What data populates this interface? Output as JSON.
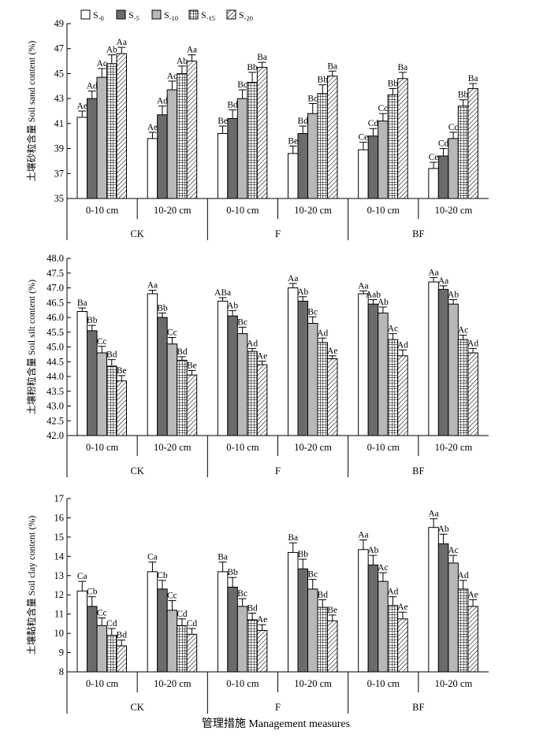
{
  "legend": {
    "entries": [
      {
        "base": "S",
        "sub": "-0",
        "pattern": "white"
      },
      {
        "base": "S",
        "sub": "-5",
        "pattern": "dark"
      },
      {
        "base": "S",
        "sub": "-10",
        "pattern": "light"
      },
      {
        "base": "S",
        "sub": "-15",
        "pattern": "grid"
      },
      {
        "base": "S",
        "sub": "-20",
        "pattern": "hatch"
      }
    ]
  },
  "x_title": "管理措施 Management measures",
  "chart_data": [
    {
      "type": "bar",
      "id": "sand",
      "ylabel": "土壤砂粒含量 Soil sand content (%)",
      "ylim": [
        35,
        49
      ],
      "yticks": [
        "35",
        "37",
        "39",
        "41",
        "43",
        "45",
        "47",
        "49"
      ],
      "depths": [
        "0-10 cm",
        "10-20 cm",
        "0-10 cm",
        "10-20 cm",
        "0-10 cm",
        "10-20 cm"
      ],
      "groups": [
        "CK",
        "F",
        "BF"
      ],
      "series": [
        "S-0",
        "S-5",
        "S-10",
        "S-15",
        "S-20"
      ],
      "values": [
        [
          41.5,
          43.0,
          44.7,
          45.8,
          46.6
        ],
        [
          39.8,
          41.7,
          43.7,
          45.0,
          46.0
        ],
        [
          40.2,
          41.4,
          43.0,
          44.3,
          45.5
        ],
        [
          38.6,
          40.2,
          41.8,
          43.4,
          44.8
        ],
        [
          38.9,
          40.0,
          41.2,
          43.3,
          44.6
        ],
        [
          37.4,
          38.4,
          39.8,
          42.4,
          43.8
        ]
      ],
      "errors": [
        [
          0.5,
          0.6,
          0.7,
          0.7,
          0.5
        ],
        [
          0.5,
          0.7,
          0.7,
          0.6,
          0.5
        ],
        [
          0.6,
          0.7,
          0.7,
          0.8,
          0.4
        ],
        [
          0.6,
          0.6,
          0.8,
          0.7,
          0.4
        ],
        [
          0.6,
          0.6,
          0.6,
          0.5,
          0.5
        ],
        [
          0.5,
          0.6,
          0.5,
          0.5,
          0.4
        ]
      ],
      "labels": [
        [
          "Ae",
          "Ad",
          "Ac",
          "Ab",
          "Aa"
        ],
        [
          "Ae",
          "Ad",
          "Ac",
          "Ab",
          "Aa"
        ],
        [
          "Be",
          "Bd",
          "Bc",
          "Bb",
          "Ba"
        ],
        [
          "Be",
          "Bd",
          "Bc",
          "Bb",
          "Ba"
        ],
        [
          "Ce",
          "Cd",
          "Cc",
          "Bb",
          "Ba"
        ],
        [
          "Ce",
          "Cd",
          "Cc",
          "Bb",
          "Ba"
        ]
      ]
    },
    {
      "type": "bar",
      "id": "silt",
      "ylabel": "土壤粉粒含量 Soil silt content (%)",
      "ylim": [
        42,
        48
      ],
      "yticks": [
        "42.0",
        "42.5",
        "43.0",
        "43.5",
        "44.0",
        "44.5",
        "45.0",
        "45.5",
        "46.0",
        "46.5",
        "47.0",
        "47.5",
        "48.0"
      ],
      "depths": [
        "0-10 cm",
        "10-20 cm",
        "0-10 cm",
        "10-20 cm",
        "0-10 cm",
        "10-20 cm"
      ],
      "groups": [
        "CK",
        "F",
        "BF"
      ],
      "series": [
        "S-0",
        "S-5",
        "S-10",
        "S-15",
        "S-20"
      ],
      "values": [
        [
          46.2,
          45.55,
          44.8,
          44.35,
          43.85
        ],
        [
          46.8,
          46.0,
          45.1,
          44.55,
          44.05
        ],
        [
          46.55,
          46.05,
          45.45,
          44.85,
          44.4
        ],
        [
          47.0,
          46.55,
          45.8,
          45.15,
          44.6
        ],
        [
          46.8,
          46.45,
          46.15,
          45.25,
          44.7
        ],
        [
          47.2,
          46.95,
          46.45,
          45.25,
          44.8
        ]
      ],
      "errors": [
        [
          0.12,
          0.18,
          0.22,
          0.22,
          0.18
        ],
        [
          0.12,
          0.15,
          0.22,
          0.12,
          0.15
        ],
        [
          0.12,
          0.18,
          0.22,
          0.1,
          0.12
        ],
        [
          0.15,
          0.15,
          0.22,
          0.15,
          0.1
        ],
        [
          0.1,
          0.15,
          0.2,
          0.2,
          0.2
        ],
        [
          0.15,
          0.12,
          0.15,
          0.15,
          0.15
        ]
      ],
      "labels": [
        [
          "Ba",
          "Bb",
          "Cc",
          "Bd",
          "Be"
        ],
        [
          "Aa",
          "Bb",
          "Cc",
          "Bd",
          "Be"
        ],
        [
          "ABa",
          "Ab",
          "Bc",
          "Ad",
          "Ae"
        ],
        [
          "Aa",
          "Ab",
          "Bc",
          "Ad",
          "Ae"
        ],
        [
          "Aa",
          "Aab",
          "Ab",
          "Ac",
          "Ad"
        ],
        [
          "Aa",
          "Aa",
          "Ab",
          "Ac",
          "Ad"
        ]
      ]
    },
    {
      "type": "bar",
      "id": "clay",
      "ylabel": "土壤黏粒含量 Soil clay content (%)",
      "ylim": [
        8,
        17
      ],
      "yticks": [
        "8",
        "9",
        "10",
        "11",
        "12",
        "13",
        "14",
        "15",
        "16",
        "17"
      ],
      "depths": [
        "0-10 cm",
        "10-20 cm",
        "0-10 cm",
        "10-20 cm",
        "0-10 cm",
        "10-20 cm"
      ],
      "groups": [
        "CK",
        "F",
        "BF"
      ],
      "series": [
        "S-0",
        "S-5",
        "S-10",
        "S-15",
        "S-20"
      ],
      "values": [
        [
          12.2,
          11.4,
          10.4,
          9.9,
          9.35
        ],
        [
          13.2,
          12.3,
          11.2,
          10.4,
          9.95
        ],
        [
          13.2,
          12.4,
          11.4,
          10.7,
          10.15
        ],
        [
          14.2,
          13.35,
          12.3,
          11.35,
          10.65
        ],
        [
          14.35,
          13.55,
          12.7,
          11.45,
          10.75
        ],
        [
          15.5,
          14.65,
          13.65,
          12.3,
          11.4
        ]
      ],
      "errors": [
        [
          0.5,
          0.5,
          0.4,
          0.35,
          0.3
        ],
        [
          0.5,
          0.45,
          0.5,
          0.35,
          0.3
        ],
        [
          0.5,
          0.5,
          0.4,
          0.35,
          0.3
        ],
        [
          0.5,
          0.5,
          0.5,
          0.4,
          0.3
        ],
        [
          0.5,
          0.5,
          0.45,
          0.45,
          0.35
        ],
        [
          0.45,
          0.5,
          0.4,
          0.45,
          0.35
        ]
      ],
      "labels": [
        [
          "Ca",
          "Cb",
          "Cc",
          "Cd",
          "Bd"
        ],
        [
          "Ca",
          "Cb",
          "Cc",
          "Cd",
          "Cd"
        ],
        [
          "Ba",
          "Bb",
          "Bc",
          "Bd",
          "Ae"
        ],
        [
          "Ba",
          "Bb",
          "Bc",
          "Bd",
          "Be"
        ],
        [
          "Aa",
          "Ab",
          "Ac",
          "Ad",
          "Ae"
        ],
        [
          "Aa",
          "Ab",
          "Ac",
          "Ad",
          "Ae"
        ]
      ]
    }
  ]
}
